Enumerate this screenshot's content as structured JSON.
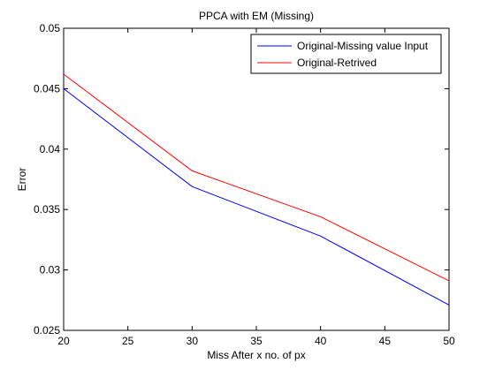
{
  "chart_data": {
    "type": "line",
    "title": "PPCA with EM (Missing)",
    "xlabel": "Miss After x no. of px",
    "ylabel": "Error",
    "xlim": [
      20,
      50
    ],
    "ylim": [
      0.025,
      0.05
    ],
    "xticks": [
      20,
      25,
      30,
      35,
      40,
      45,
      50
    ],
    "xtick_labels": [
      "20",
      "25",
      "30",
      "35",
      "40",
      "45",
      "50"
    ],
    "yticks": [
      0.025,
      0.03,
      0.035,
      0.04,
      0.045,
      0.05
    ],
    "ytick_labels": [
      "0.025",
      "0.03",
      "0.035",
      "0.04",
      "0.045",
      "0.05"
    ],
    "x": [
      20,
      30,
      40,
      50
    ],
    "grid": false,
    "legend_position": "top-right",
    "series": [
      {
        "name": "Original-Missing value Input",
        "color": "#0000ff",
        "values": [
          0.045,
          0.0369,
          0.0328,
          0.0271
        ]
      },
      {
        "name": "Original-Retrived",
        "color": "#ff0000",
        "values": [
          0.0462,
          0.0382,
          0.0344,
          0.0291
        ]
      }
    ]
  }
}
